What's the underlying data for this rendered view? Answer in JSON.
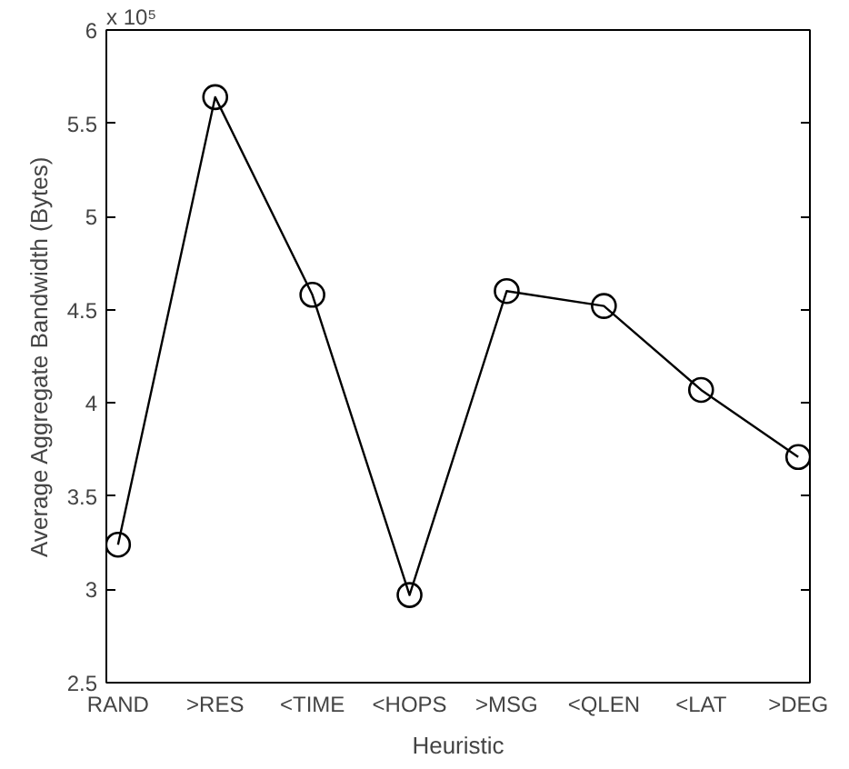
{
  "chart_data": {
    "type": "line",
    "xlabel": "Heuristic",
    "ylabel": "Average Aggregate Bandwidth (Bytes)",
    "categories": [
      "RAND",
      ">RES",
      "<TIME",
      "<HOPS",
      ">MSG",
      "<QLEN",
      "<LAT",
      ">DEG"
    ],
    "series": [
      {
        "color": "#000000",
        "values": [
          3.24,
          5.64,
          4.58,
          2.97,
          4.6,
          4.52,
          4.07,
          3.71
        ]
      }
    ],
    "ylim": [
      2.5,
      6
    ],
    "yticks": [
      2.5,
      3,
      3.5,
      4,
      4.5,
      5,
      5.5,
      6
    ],
    "annotations": [
      "x 10⁵"
    ],
    "marker": "circle",
    "line_style": "solid"
  }
}
